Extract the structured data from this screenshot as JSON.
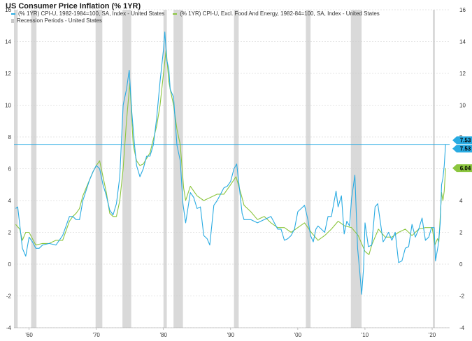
{
  "title": "US Consumer Price Inflation (% 1YR)",
  "colors": {
    "headline": "#29abe2",
    "core": "#8cc63f",
    "recession": "#d9d9d9",
    "grid": "#cccccc"
  },
  "legend": {
    "headline": "(% 1YR) CPI-U, 1982-1984=100, SA, Index - United States",
    "core": "(% 1YR) CPI-U, Excl. Food And Energy, 1982-84=100, SA, Index - United States",
    "recession": "Recession Periods - United States"
  },
  "chart_data": {
    "type": "line",
    "title": "US Consumer Price Inflation (% 1YR)",
    "ylim": [
      -4,
      16
    ],
    "yticks": [
      -4,
      -2,
      0,
      2,
      4,
      6,
      8,
      10,
      12,
      14,
      16
    ],
    "xlim": [
      1957.75,
      2022.6
    ],
    "xticks": [
      {
        "year": 1960,
        "label": "'60"
      },
      {
        "year": 1970,
        "label": "'70"
      },
      {
        "year": 1980,
        "label": "'80"
      },
      {
        "year": 1990,
        "label": "'90"
      },
      {
        "year": 2000,
        "label": "'00"
      },
      {
        "year": 2010,
        "label": "'10"
      },
      {
        "year": 2020,
        "label": "'20"
      }
    ],
    "grid": "horizontal",
    "recessions": [
      [
        1957.6,
        1958.3
      ],
      [
        1960.3,
        1961.1
      ],
      [
        1969.9,
        1970.9
      ],
      [
        1973.9,
        1975.2
      ],
      [
        1980.0,
        1980.5
      ],
      [
        1981.5,
        1982.9
      ],
      [
        1990.5,
        1991.2
      ],
      [
        2001.2,
        2001.9
      ],
      [
        2007.9,
        2009.5
      ],
      [
        2020.1,
        2020.4
      ]
    ],
    "series": [
      {
        "name": "(% 1YR) CPI-U, 1982-1984=100, SA, Index - United States",
        "last_value": "7.53",
        "x": [
          1958.0,
          1958.3,
          1958.6,
          1959.0,
          1959.5,
          1960.0,
          1960.5,
          1961.0,
          1961.5,
          1962.0,
          1963.0,
          1964.0,
          1965.0,
          1966.0,
          1966.5,
          1967.0,
          1967.5,
          1968.0,
          1969.0,
          1969.5,
          1970.0,
          1970.5,
          1971.0,
          1971.5,
          1972.0,
          1972.5,
          1973.0,
          1973.5,
          1974.0,
          1974.5,
          1974.9,
          1975.3,
          1975.7,
          1976.0,
          1976.5,
          1977.0,
          1977.5,
          1978.0,
          1978.5,
          1979.0,
          1979.5,
          1980.0,
          1980.2,
          1980.5,
          1980.8,
          1981.0,
          1981.5,
          1982.0,
          1982.5,
          1982.9,
          1983.3,
          1984.0,
          1984.5,
          1985.0,
          1985.5,
          1986.0,
          1986.5,
          1986.9,
          1987.5,
          1988.0,
          1989.0,
          1989.5,
          1990.0,
          1990.5,
          1990.9,
          1991.3,
          1991.7,
          1992.0,
          1993.0,
          1994.0,
          1995.0,
          1996.0,
          1997.0,
          1997.5,
          1998.0,
          1998.5,
          1999.0,
          1999.5,
          2000.0,
          2000.5,
          2001.0,
          2001.5,
          2001.9,
          2002.3,
          2002.7,
          2003.0,
          2003.5,
          2004.0,
          2004.5,
          2005.0,
          2005.7,
          2006.0,
          2006.5,
          2006.9,
          2007.3,
          2007.7,
          2008.0,
          2008.5,
          2008.9,
          2009.2,
          2009.5,
          2009.8,
          2010.0,
          2010.5,
          2011.0,
          2011.5,
          2011.9,
          2012.3,
          2012.7,
          2013.0,
          2013.5,
          2014.0,
          2014.5,
          2015.0,
          2015.5,
          2016.0,
          2016.5,
          2017.0,
          2017.5,
          2018.0,
          2018.5,
          2019.0,
          2019.5,
          2019.9,
          2020.3,
          2020.5,
          2020.9,
          2021.2,
          2021.4,
          2021.6,
          2021.8,
          2022.0
        ],
        "values": [
          3.5,
          3.6,
          2.5,
          1.0,
          0.5,
          1.7,
          1.4,
          1.0,
          1.0,
          1.2,
          1.3,
          1.2,
          1.8,
          3.0,
          3.0,
          2.8,
          2.8,
          4.0,
          5.3,
          5.8,
          6.2,
          6.0,
          5.0,
          4.3,
          3.4,
          3.1,
          3.8,
          5.5,
          10.0,
          11.0,
          12.2,
          9.5,
          7.5,
          6.2,
          5.5,
          6.0,
          6.8,
          6.8,
          7.5,
          9.2,
          11.5,
          13.5,
          14.6,
          12.8,
          12.3,
          11.0,
          10.5,
          7.5,
          6.5,
          3.8,
          2.6,
          4.5,
          4.2,
          3.5,
          3.6,
          1.8,
          1.6,
          1.2,
          3.7,
          4.0,
          4.8,
          4.9,
          5.2,
          6.0,
          6.3,
          4.8,
          3.2,
          2.8,
          2.8,
          2.6,
          2.8,
          3.0,
          2.2,
          2.2,
          1.5,
          1.6,
          1.8,
          2.2,
          3.3,
          3.5,
          3.7,
          2.8,
          1.8,
          1.4,
          2.2,
          2.4,
          2.2,
          2.0,
          3.0,
          3.0,
          4.6,
          3.6,
          4.3,
          1.9,
          2.7,
          2.4,
          4.1,
          5.6,
          1.0,
          -0.4,
          -1.9,
          -0.2,
          2.6,
          1.1,
          1.2,
          3.6,
          3.8,
          2.6,
          1.4,
          1.6,
          2.0,
          1.5,
          2.0,
          0.1,
          0.2,
          1.0,
          1.1,
          2.5,
          1.7,
          2.2,
          2.9,
          1.5,
          1.7,
          2.3,
          2.3,
          0.2,
          1.2,
          2.6,
          5.0,
          5.4,
          6.2,
          7.53
        ],
        "color": "#29abe2"
      },
      {
        "name": "(% 1YR) CPI-U, Excl. Food And Energy, 1982-84=100, SA, Index - United States",
        "last_value": "6.04",
        "x": [
          1958.0,
          1958.6,
          1959.0,
          1959.5,
          1960.0,
          1961.0,
          1962.0,
          1963.0,
          1964.0,
          1965.0,
          1966.0,
          1966.5,
          1967.0,
          1967.5,
          1968.0,
          1969.0,
          1969.5,
          1970.0,
          1970.5,
          1971.0,
          1971.5,
          1972.0,
          1972.5,
          1973.0,
          1973.5,
          1974.0,
          1974.5,
          1975.0,
          1975.5,
          1976.0,
          1976.5,
          1977.0,
          1978.0,
          1979.0,
          1979.5,
          1980.0,
          1980.4,
          1980.8,
          1981.0,
          1981.5,
          1982.0,
          1982.5,
          1983.0,
          1983.3,
          1984.0,
          1985.0,
          1986.0,
          1987.0,
          1988.0,
          1989.0,
          1990.0,
          1990.8,
          1991.5,
          1992.0,
          1993.0,
          1994.0,
          1995.0,
          1996.0,
          1997.0,
          1998.0,
          1999.0,
          2000.0,
          2001.0,
          2002.0,
          2003.0,
          2004.0,
          2005.0,
          2006.0,
          2007.0,
          2008.0,
          2009.0,
          2010.0,
          2010.6,
          2011.0,
          2012.0,
          2013.0,
          2014.0,
          2015.0,
          2016.0,
          2017.0,
          2018.0,
          2019.0,
          2020.0,
          2020.4,
          2020.8,
          2021.0,
          2021.2,
          2021.4,
          2021.6,
          2021.8,
          2022.0
        ],
        "values": [
          2.5,
          2.2,
          1.5,
          2.0,
          2.0,
          1.2,
          1.3,
          1.3,
          1.5,
          1.5,
          2.7,
          3.0,
          3.2,
          3.5,
          4.3,
          5.3,
          5.8,
          6.2,
          6.5,
          5.5,
          4.5,
          3.2,
          3.0,
          3.0,
          4.0,
          6.0,
          9.0,
          11.4,
          7.5,
          6.5,
          6.2,
          6.3,
          7.0,
          8.7,
          10.0,
          12.0,
          13.5,
          11.5,
          11.0,
          10.0,
          8.5,
          7.5,
          4.8,
          4.0,
          4.9,
          4.3,
          4.0,
          4.2,
          4.4,
          4.4,
          5.0,
          5.5,
          4.5,
          3.7,
          3.3,
          2.8,
          3.0,
          2.6,
          2.3,
          2.3,
          2.0,
          2.3,
          2.6,
          2.0,
          1.5,
          1.8,
          2.2,
          2.7,
          2.4,
          2.3,
          1.8,
          0.8,
          0.6,
          1.2,
          2.2,
          1.7,
          1.7,
          2.0,
          2.2,
          1.8,
          2.2,
          2.3,
          2.3,
          1.2,
          1.6,
          1.4,
          3.0,
          4.5,
          4.0,
          4.6,
          6.04
        ],
        "color": "#8cc63f"
      }
    ]
  }
}
